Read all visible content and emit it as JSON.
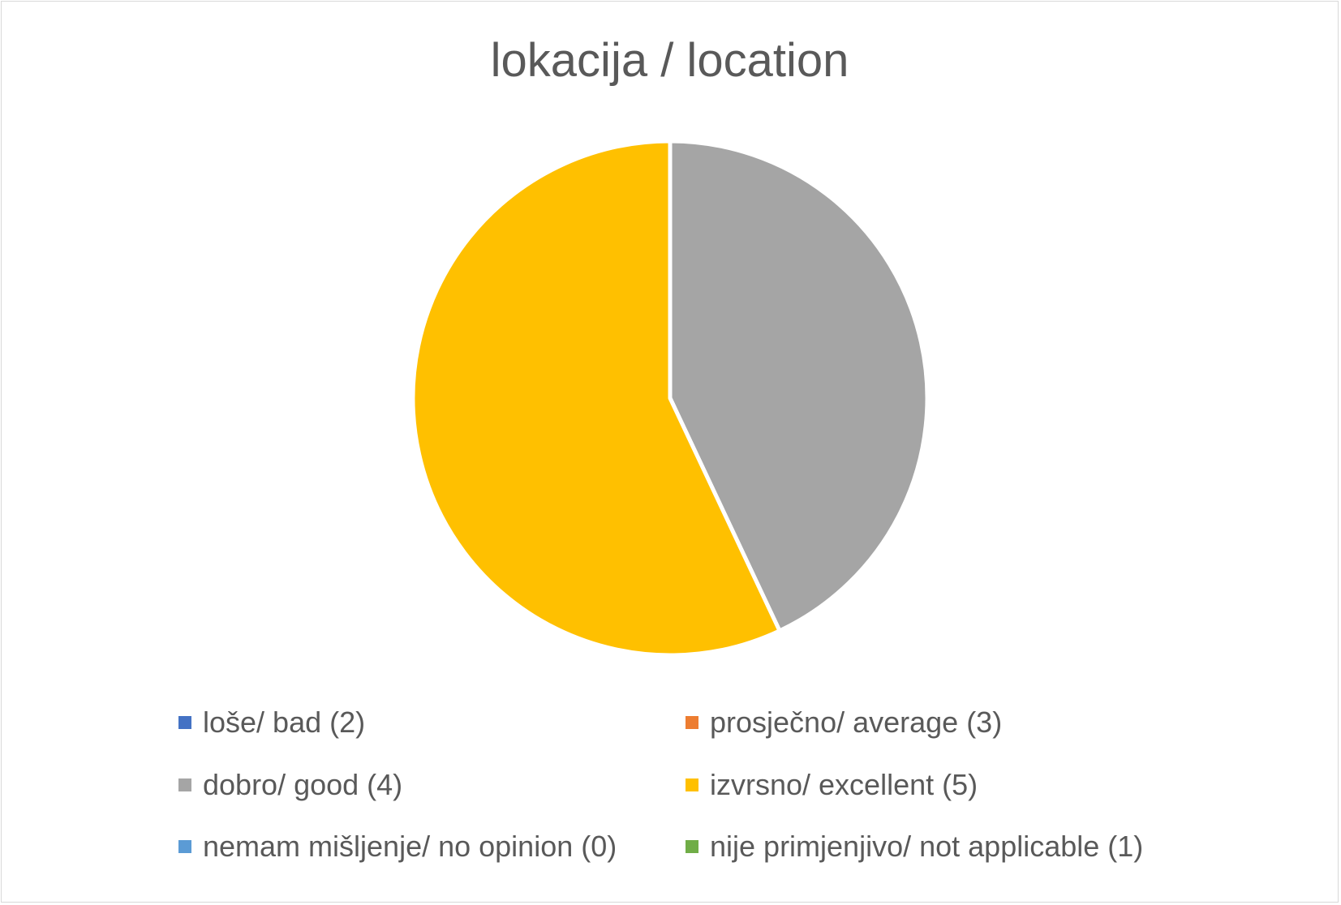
{
  "chart_data": {
    "type": "pie",
    "title": "lokacija / location",
    "categories": [
      "loše/ bad (2)",
      "prosječno/ average (3)",
      "dobro/ good (4)",
      "izvrsno/ excellent (5)",
      "nemam mišljenje/ no opinion (0)",
      "nije primjenjivo/ not applicable (1)"
    ],
    "values": [
      0,
      0,
      43,
      57,
      0,
      0
    ],
    "colors": [
      "#4472C4",
      "#ED7D31",
      "#A5A5A5",
      "#FFC000",
      "#5B9BD5",
      "#70AD47"
    ],
    "legend_position": "bottom",
    "legend": [
      {
        "label": "loše/ bad (2)",
        "color": "#4472C4"
      },
      {
        "label": "prosječno/ average (3)",
        "color": "#ED7D31"
      },
      {
        "label": "dobro/ good (4)",
        "color": "#A5A5A5"
      },
      {
        "label": "izvrsno/ excellent (5)",
        "color": "#FFC000"
      },
      {
        "label": "nemam mišljenje/ no opinion (0)",
        "color": "#5B9BD5"
      },
      {
        "label": "nije primjenjivo/ not applicable (1)",
        "color": "#70AD47"
      }
    ]
  }
}
